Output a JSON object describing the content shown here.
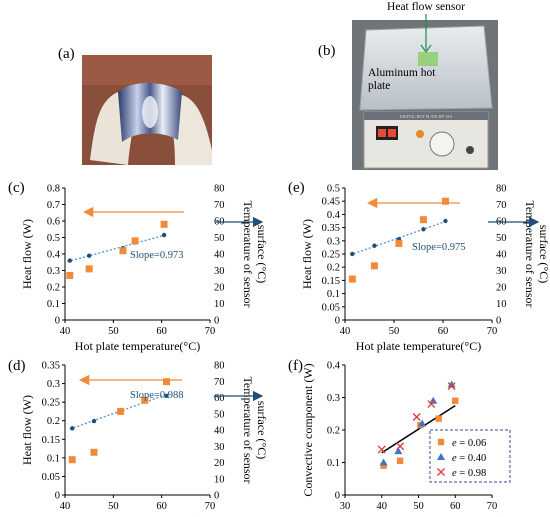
{
  "photos": {
    "a": {
      "label": "(a)"
    },
    "b": {
      "label": "(b)",
      "sensor_label": "Heat flow sensor",
      "plate_label": "Aluminum hot\nplate",
      "device_label": "DIGITAL HOT PLATE HP-1SA"
    }
  },
  "colors": {
    "heat_flow": "#f28a3a",
    "temperature": "#1f4e79",
    "regression": "#5b9bd5",
    "e006": "#f28a3a",
    "e040": "#3a78c2",
    "e098": "#e03a3a",
    "fit": "#000000"
  },
  "chart_data": [
    {
      "id": "c",
      "panel_label": "(c)",
      "type": "scatter",
      "xlabel": "Hot plate temperature(°C)",
      "ylabel": "Heat flow (W)",
      "y2label": "Temperature of sensor surface (°C)",
      "xlim": [
        40,
        70
      ],
      "xticks": [
        40,
        50,
        60,
        70
      ],
      "ylim": [
        0,
        0.8
      ],
      "yticks": [
        "0",
        "0.1",
        "0.2",
        "0.3",
        "0.4",
        "0.5",
        "0.6",
        "0.7",
        "0.8"
      ],
      "y2lim": [
        0,
        80
      ],
      "y2ticks": [
        "0",
        "10",
        "20",
        "30",
        "40",
        "50",
        "60",
        "70",
        "80"
      ],
      "series": [
        {
          "name": "Heat flow",
          "axis": "left",
          "marker": "square",
          "x": [
            41,
            45,
            52,
            54.5,
            60.5
          ],
          "y": [
            0.27,
            0.31,
            0.42,
            0.48,
            0.58
          ]
        },
        {
          "name": "Temperature",
          "axis": "right",
          "marker": "dot-line",
          "x": [
            41,
            45,
            52,
            54.5,
            60.5
          ],
          "y": [
            36,
            39,
            43.5,
            47,
            51.5
          ]
        }
      ],
      "annotation": "Slope=0.973"
    },
    {
      "id": "e",
      "panel_label": "(e)",
      "type": "scatter",
      "xlabel": "Hot plate temperature(°C)",
      "ylabel": "Heat flow (W)",
      "y2label": "Temperature of sensor surface (°C)",
      "xlim": [
        40,
        70
      ],
      "xticks": [
        40,
        50,
        60,
        70
      ],
      "ylim": [
        0,
        0.5
      ],
      "yticks": [
        "0",
        "0.05",
        "0.1",
        "0.15",
        "0.2",
        "0.25",
        "0.3",
        "0.35",
        "0.4",
        "0.45",
        "0.5"
      ],
      "y2lim": [
        0,
        80
      ],
      "y2ticks": [
        "0",
        "10",
        "20",
        "30",
        "40",
        "50",
        "60",
        "70",
        "80"
      ],
      "series": [
        {
          "name": "Heat flow",
          "axis": "left",
          "marker": "square",
          "x": [
            41.5,
            46,
            51,
            56,
            60.5
          ],
          "y": [
            0.155,
            0.205,
            0.29,
            0.38,
            0.45
          ]
        },
        {
          "name": "Temperature",
          "axis": "right",
          "marker": "dot-line",
          "x": [
            41.5,
            46,
            51,
            56,
            60.5
          ],
          "y": [
            40,
            45,
            49,
            55,
            60
          ]
        }
      ],
      "annotation": "Slope=0.975"
    },
    {
      "id": "d",
      "panel_label": "(d)",
      "type": "scatter",
      "xlabel": "Hot plate temperature(°C)",
      "ylabel": "Heat flow (W)",
      "y2label": "Temperature of sensor surface (°C)",
      "xlim": [
        40,
        70
      ],
      "xticks": [
        40,
        50,
        60,
        70
      ],
      "ylim": [
        0,
        0.35
      ],
      "yticks": [
        "0",
        "0.05",
        "0.1",
        "0.15",
        "0.2",
        "0.25",
        "0.3",
        "0.35"
      ],
      "y2lim": [
        0,
        80
      ],
      "y2ticks": [
        "0",
        "10",
        "20",
        "30",
        "40",
        "50",
        "60",
        "70",
        "80"
      ],
      "series": [
        {
          "name": "Heat flow",
          "axis": "left",
          "marker": "square",
          "x": [
            41.5,
            46,
            51.5,
            56.5,
            61
          ],
          "y": [
            0.095,
            0.115,
            0.225,
            0.255,
            0.305
          ]
        },
        {
          "name": "Temperature",
          "axis": "right",
          "marker": "dot-line",
          "x": [
            41.5,
            46,
            51.5,
            56.5,
            61
          ],
          "y": [
            41,
            45.5,
            52,
            58,
            61
          ]
        }
      ],
      "annotation": "Slope=0.988"
    },
    {
      "id": "f",
      "panel_label": "(f)",
      "type": "scatter",
      "xlabel": "Temperature of sensor surface (°C)",
      "ylabel": "Convective component (W)",
      "xlim": [
        30,
        70
      ],
      "xticks": [
        30,
        40,
        50,
        60,
        70
      ],
      "ylim": [
        0,
        0.4
      ],
      "yticks": [
        "0",
        "0.1",
        "0.2",
        "0.3",
        "0.4"
      ],
      "series": [
        {
          "name": "e = 0.06",
          "marker": "square",
          "x": [
            40.5,
            45,
            50.5,
            55.5,
            60
          ],
          "y": [
            0.09,
            0.105,
            0.215,
            0.235,
            0.29
          ]
        },
        {
          "name": "e = 0.40",
          "marker": "triangle",
          "x": [
            40.5,
            44.5,
            51,
            54,
            59
          ],
          "y": [
            0.1,
            0.135,
            0.22,
            0.29,
            0.34
          ]
        },
        {
          "name": "e = 0.98",
          "marker": "x",
          "x": [
            40,
            45,
            49.5,
            53.5,
            59
          ],
          "y": [
            0.14,
            0.15,
            0.24,
            0.28,
            0.335
          ]
        }
      ],
      "fit": {
        "x": [
          40,
          60
        ],
        "y": [
          0.13,
          0.275
        ]
      },
      "legend_position": "bottom-right"
    }
  ]
}
